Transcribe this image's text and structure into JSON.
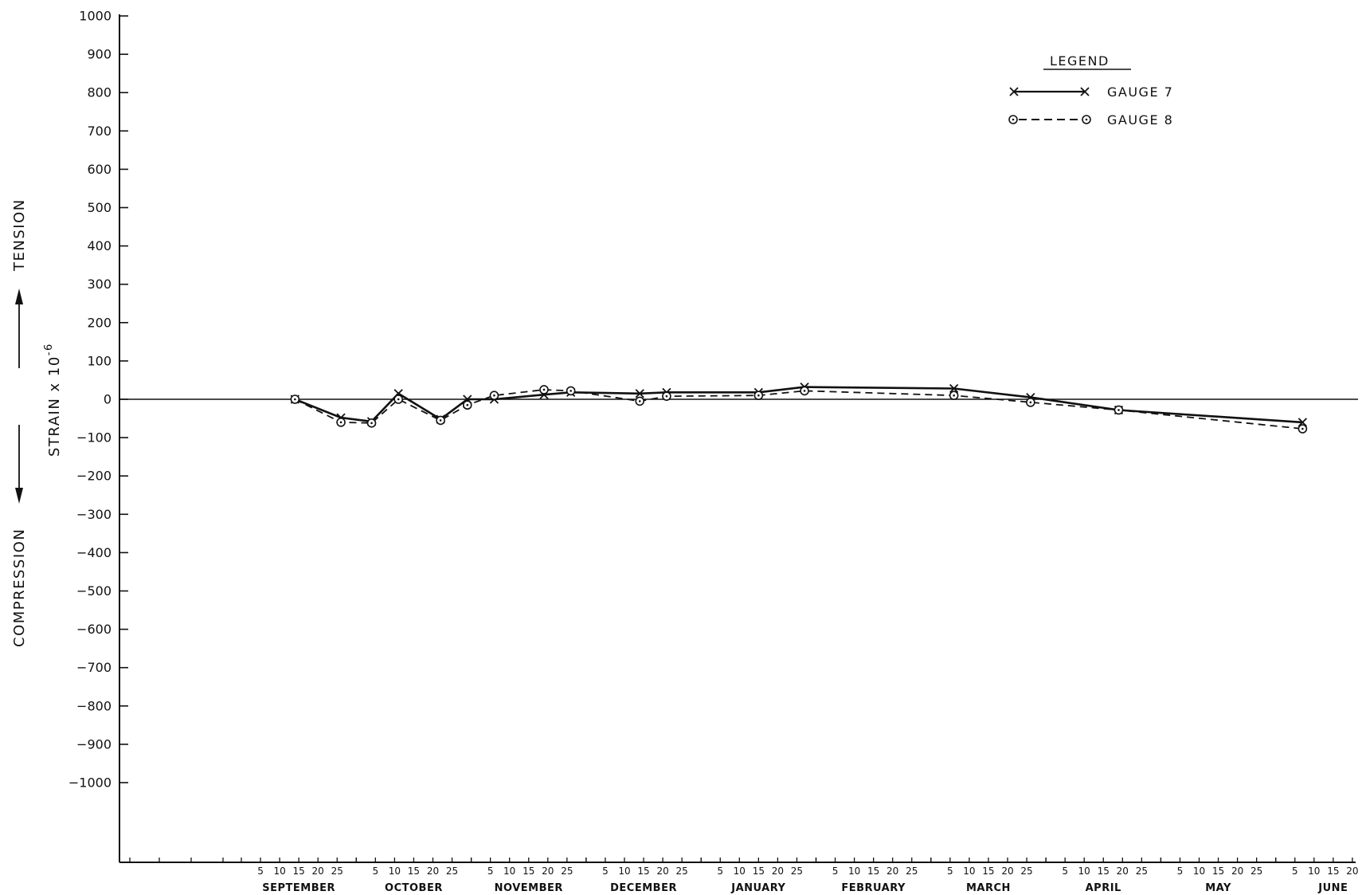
{
  "chart_data": {
    "type": "line",
    "ylabel": "STRAIN x 10",
    "ylabel_exponent": "-6",
    "side_labels": {
      "up": "TENSION",
      "down": "COMPRESSION"
    },
    "ylim": [
      -1000,
      1000
    ],
    "yticks": [
      1000,
      900,
      800,
      700,
      600,
      500,
      400,
      300,
      200,
      100,
      0,
      -100,
      -200,
      -300,
      -400,
      -500,
      -600,
      -700,
      -800,
      -900,
      -1000
    ],
    "ytick_labels": [
      "1000",
      "900",
      "800",
      "700",
      "600",
      "500",
      "400",
      "300",
      "200",
      "100",
      "0",
      "−100",
      "−200",
      "−300",
      "−400",
      "−500",
      "−600",
      "−700",
      "−800",
      "−900",
      "−1000"
    ],
    "months": [
      "SEPTEMBER",
      "OCTOBER",
      "NOVEMBER",
      "DECEMBER",
      "JANUARY",
      "FEBRUARY",
      "MARCH",
      "APRIL",
      "MAY",
      "JUNE"
    ],
    "day_ticks": [
      "5",
      "10",
      "15",
      "20",
      "25"
    ],
    "legend": {
      "title": "LEGEND",
      "placement": "top-right"
    },
    "grid": false,
    "series": [
      {
        "name": "GAUGE 7",
        "marker": "x",
        "line": "solid",
        "points": [
          {
            "month": 0,
            "day": 14,
            "value": 0
          },
          {
            "month": 0,
            "day": 26,
            "value": -48
          },
          {
            "month": 1,
            "day": 4,
            "value": -58
          },
          {
            "month": 1,
            "day": 11,
            "value": 15
          },
          {
            "month": 1,
            "day": 22,
            "value": -52
          },
          {
            "month": 1,
            "day": 29,
            "value": 0
          },
          {
            "month": 2,
            "day": 6,
            "value": 0
          },
          {
            "month": 2,
            "day": 19,
            "value": 12
          },
          {
            "month": 2,
            "day": 26,
            "value": 18
          },
          {
            "month": 3,
            "day": 14,
            "value": 15
          },
          {
            "month": 3,
            "day": 21,
            "value": 18
          },
          {
            "month": 4,
            "day": 15,
            "value": 18
          },
          {
            "month": 4,
            "day": 27,
            "value": 32
          },
          {
            "month": 6,
            "day": 6,
            "value": 28
          },
          {
            "month": 6,
            "day": 26,
            "value": 5
          },
          {
            "month": 7,
            "day": 19,
            "value": -28
          },
          {
            "month": 9,
            "day": 7,
            "value": -60
          }
        ]
      },
      {
        "name": "GAUGE 8",
        "marker": "circle-dot",
        "line": "dashed",
        "points": [
          {
            "month": 0,
            "day": 14,
            "value": 0
          },
          {
            "month": 0,
            "day": 26,
            "value": -60
          },
          {
            "month": 1,
            "day": 4,
            "value": -62
          },
          {
            "month": 1,
            "day": 11,
            "value": 0
          },
          {
            "month": 1,
            "day": 22,
            "value": -55
          },
          {
            "month": 1,
            "day": 29,
            "value": -15
          },
          {
            "month": 2,
            "day": 6,
            "value": 10
          },
          {
            "month": 2,
            "day": 19,
            "value": 25
          },
          {
            "month": 2,
            "day": 26,
            "value": 22
          },
          {
            "month": 3,
            "day": 14,
            "value": -5
          },
          {
            "month": 3,
            "day": 21,
            "value": 8
          },
          {
            "month": 4,
            "day": 15,
            "value": 10
          },
          {
            "month": 4,
            "day": 27,
            "value": 22
          },
          {
            "month": 6,
            "day": 6,
            "value": 10
          },
          {
            "month": 6,
            "day": 26,
            "value": -8
          },
          {
            "month": 7,
            "day": 19,
            "value": -28
          },
          {
            "month": 9,
            "day": 7,
            "value": -77
          }
        ]
      }
    ]
  }
}
